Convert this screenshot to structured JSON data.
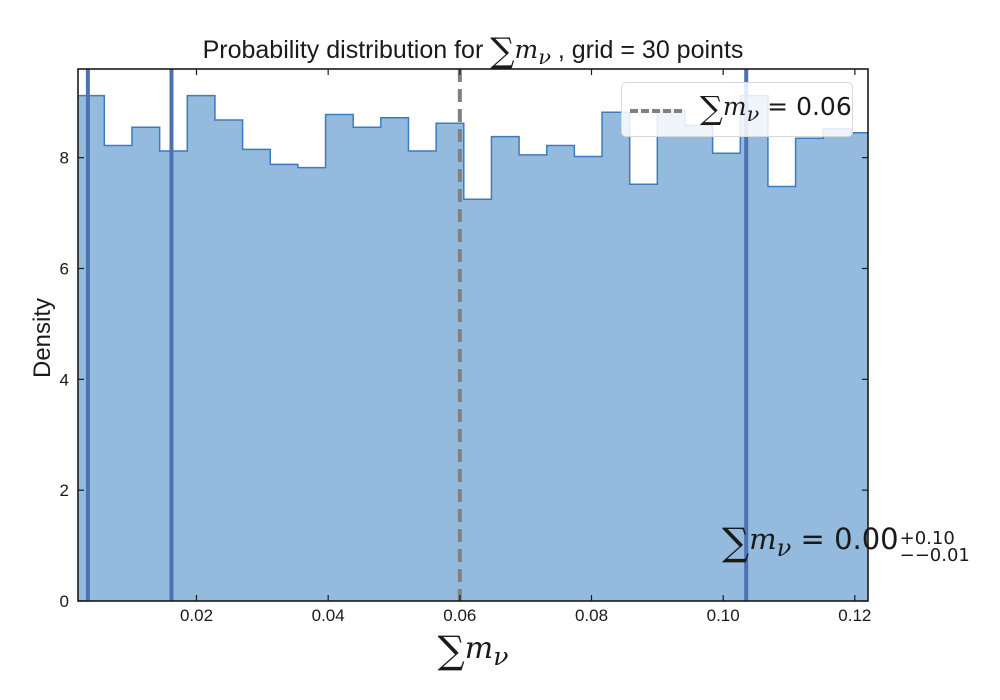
{
  "chart_data": {
    "type": "bar",
    "title": "Probability distribution for ∑m_ν , grid = 30 points",
    "title_prefix": "Probability distribution for",
    "title_suffix": ", grid = 30 points",
    "sum_symbol": "∑",
    "m_symbol": "m",
    "nu_symbol": "ν",
    "xlabel": "∑m_ν",
    "ylabel": "Density",
    "xlim": [
      0.002,
      0.122
    ],
    "ylim": [
      0,
      9.6
    ],
    "xticks": [
      0.02,
      0.04,
      0.06,
      0.08,
      0.1,
      0.12
    ],
    "xtick_labels": [
      "0.02",
      "0.04",
      "0.06",
      "0.08",
      "0.10",
      "0.12"
    ],
    "yticks": [
      0,
      2,
      4,
      6,
      8
    ],
    "ytick_labels": [
      "0",
      "2",
      "4",
      "6",
      "8"
    ],
    "grid": false,
    "bin_edges": [
      0.002,
      0.006,
      0.0102,
      0.0144,
      0.0186,
      0.0228,
      0.027,
      0.0312,
      0.0354,
      0.0396,
      0.0438,
      0.048,
      0.0522,
      0.0564,
      0.0606,
      0.0648,
      0.069,
      0.0732,
      0.0774,
      0.0816,
      0.0858,
      0.09,
      0.0942,
      0.0984,
      0.1026,
      0.1068,
      0.111,
      0.1152,
      0.1194,
      0.122
    ],
    "values": [
      9.12,
      8.22,
      8.55,
      8.12,
      9.12,
      8.68,
      8.15,
      7.88,
      7.82,
      8.78,
      8.55,
      8.72,
      8.12,
      8.62,
      7.25,
      8.38,
      8.05,
      8.22,
      8.02,
      8.82,
      7.52,
      8.85,
      8.58,
      8.08,
      9.12,
      7.48,
      8.35,
      8.52,
      8.45
    ],
    "hist_fill_color": "#94bbdd",
    "hist_edge_color": "#3a7cbf",
    "vlines_solid": [
      0.0035,
      0.0162,
      0.1035
    ],
    "vline_solid_color": "#4c72b0",
    "vline_dashed": 0.06,
    "vline_dashed_color": "#808080",
    "legend": {
      "position": "upper-right",
      "label": "∑m_ν = 0.06",
      "eq_text": " = 0.06"
    },
    "annotation": {
      "text": "∑m_ν = 0.00 +0.10 −−0.01",
      "eq_text": " = 0.00",
      "sup": "+0.10",
      "sub": "−−0.01"
    }
  }
}
